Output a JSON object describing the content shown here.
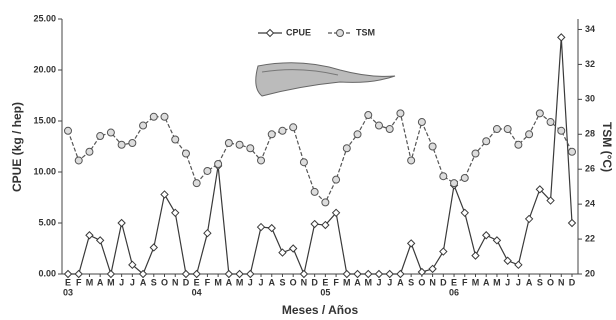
{
  "chart_data": {
    "type": "line",
    "x_label": "Meses / Años",
    "y_label": "CPUE (kg / hep)",
    "y2_label": "TSM (°C)",
    "categories": [
      "E",
      "F",
      "M",
      "A",
      "M",
      "J",
      "J",
      "A",
      "S",
      "O",
      "N",
      "D",
      "E",
      "F",
      "M",
      "A",
      "M",
      "J",
      "J",
      "A",
      "S",
      "O",
      "N",
      "D",
      "E",
      "F",
      "M",
      "A",
      "M",
      "J",
      "J",
      "A",
      "S",
      "O",
      "N",
      "D",
      "E",
      "F",
      "M",
      "A",
      "M",
      "J",
      "J",
      "A",
      "S",
      "O",
      "N",
      "D"
    ],
    "years": [
      "03",
      "04",
      "05",
      "06"
    ],
    "ylim": [
      0,
      25
    ],
    "yticks": [
      {
        "value": 0,
        "label": "0.00"
      },
      {
        "value": 5,
        "label": "5.00"
      },
      {
        "value": 10,
        "label": "10.00"
      },
      {
        "value": 15,
        "label": "15.00"
      },
      {
        "value": 20,
        "label": "20.00"
      },
      {
        "value": 25,
        "label": "25.00"
      }
    ],
    "y2lim": [
      20,
      34.6
    ],
    "y2ticks": [
      20,
      22,
      24,
      26,
      28,
      30,
      32,
      34
    ],
    "series": [
      {
        "name": "CPUE",
        "color": "#3a3a3a",
        "dash": "solid",
        "marker": "diamond",
        "values": [
          0,
          0,
          3.8,
          3.3,
          0,
          5.0,
          0.9,
          0,
          2.6,
          7.8,
          6.0,
          0,
          0,
          4.0,
          10.6,
          0,
          0,
          0,
          4.6,
          4.5,
          2.1,
          2.5,
          0,
          4.9,
          4.8,
          6.0,
          0,
          0,
          0,
          0,
          0,
          0,
          3.0,
          0.2,
          0.5,
          2.2,
          8.7,
          6.0,
          1.8,
          3.8,
          3.3,
          1.3,
          0.9,
          5.4,
          8.3,
          7.2,
          23.2,
          5.0
        ]
      },
      {
        "name": "TSM",
        "color": "#555555",
        "dash": "dashed",
        "marker": "circle",
        "axis": "y2",
        "values": [
          28.2,
          26.5,
          27.0,
          27.9,
          28.1,
          27.4,
          27.5,
          28.5,
          29.0,
          29.0,
          27.7,
          26.9,
          25.2,
          25.9,
          26.3,
          27.5,
          27.4,
          27.2,
          26.5,
          28.0,
          28.2,
          28.4,
          26.4,
          24.7,
          24.1,
          25.4,
          27.2,
          28.0,
          29.1,
          28.5,
          28.3,
          29.2,
          26.5,
          28.7,
          27.3,
          25.6,
          25.2,
          25.5,
          26.9,
          27.6,
          28.3,
          28.3,
          27.4,
          28.0,
          29.2,
          28.7,
          28.2,
          27.0
        ]
      }
    ]
  }
}
